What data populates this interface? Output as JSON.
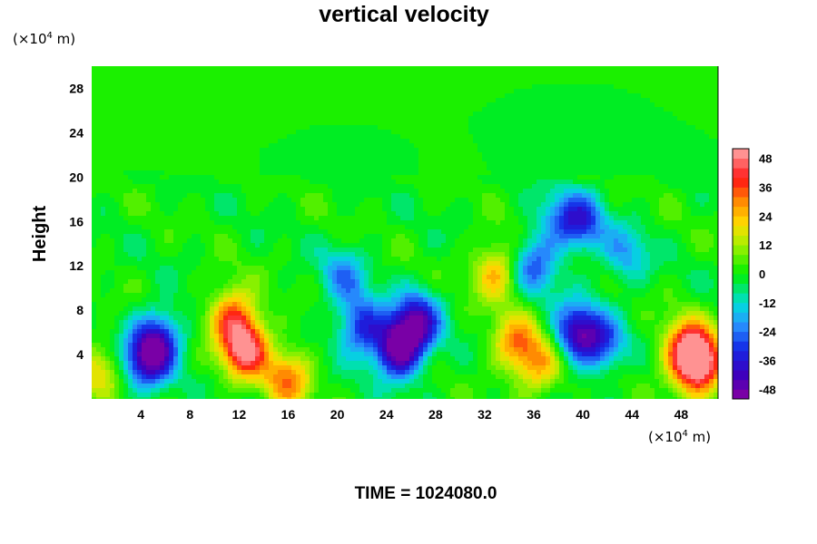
{
  "chart_data": {
    "type": "heatmap",
    "title": "vertical velocity",
    "ylabel": "Height",
    "xlabel": "",
    "y_unit": "(×10",
    "x_unit": "(×10",
    "unit_exponent": "4",
    "unit_suffix": " m)",
    "x_ticks": [
      4,
      8,
      12,
      16,
      20,
      24,
      28,
      32,
      36,
      40,
      44,
      48
    ],
    "y_ticks": [
      4,
      8,
      12,
      16,
      20,
      24,
      28
    ],
    "xlim": [
      0,
      51
    ],
    "ylim": [
      0,
      30
    ],
    "colorbar_ticks": [
      48,
      36,
      24,
      12,
      0,
      -12,
      -24,
      -36,
      -48
    ],
    "colorbar_range": [
      -52,
      52
    ],
    "colorbar_levels": 26,
    "grid": false,
    "features": [
      {
        "x": 0.5,
        "y": 2.5,
        "value": 18
      },
      {
        "x": 4.5,
        "y": 3.5,
        "value": -40
      },
      {
        "x": 5.5,
        "y": 5.5,
        "value": -30
      },
      {
        "x": 12.5,
        "y": 4.5,
        "value": 48
      },
      {
        "x": 11.5,
        "y": 7.5,
        "value": 32
      },
      {
        "x": 16.0,
        "y": 1.8,
        "value": 30
      },
      {
        "x": 22.0,
        "y": 6.5,
        "value": -32
      },
      {
        "x": 25.0,
        "y": 4.5,
        "value": -52
      },
      {
        "x": 26.5,
        "y": 7.0,
        "value": -40
      },
      {
        "x": 20.5,
        "y": 11.0,
        "value": -20
      },
      {
        "x": 33.0,
        "y": 11.5,
        "value": 26
      },
      {
        "x": 34.5,
        "y": 5.0,
        "value": 28
      },
      {
        "x": 36.5,
        "y": 3.0,
        "value": 24
      },
      {
        "x": 36.0,
        "y": 12.0,
        "value": -26
      },
      {
        "x": 38.0,
        "y": 16.0,
        "value": -18
      },
      {
        "x": 40.0,
        "y": 16.0,
        "value": -28
      },
      {
        "x": 39.5,
        "y": 6.0,
        "value": -40
      },
      {
        "x": 41.5,
        "y": 5.0,
        "value": -26
      },
      {
        "x": 43.5,
        "y": 13.0,
        "value": -18
      },
      {
        "x": 48.5,
        "y": 4.5,
        "value": 40
      },
      {
        "x": 49.5,
        "y": 3.0,
        "value": 50
      }
    ]
  },
  "footer": {
    "time_text": "TIME = 1024080.0"
  }
}
